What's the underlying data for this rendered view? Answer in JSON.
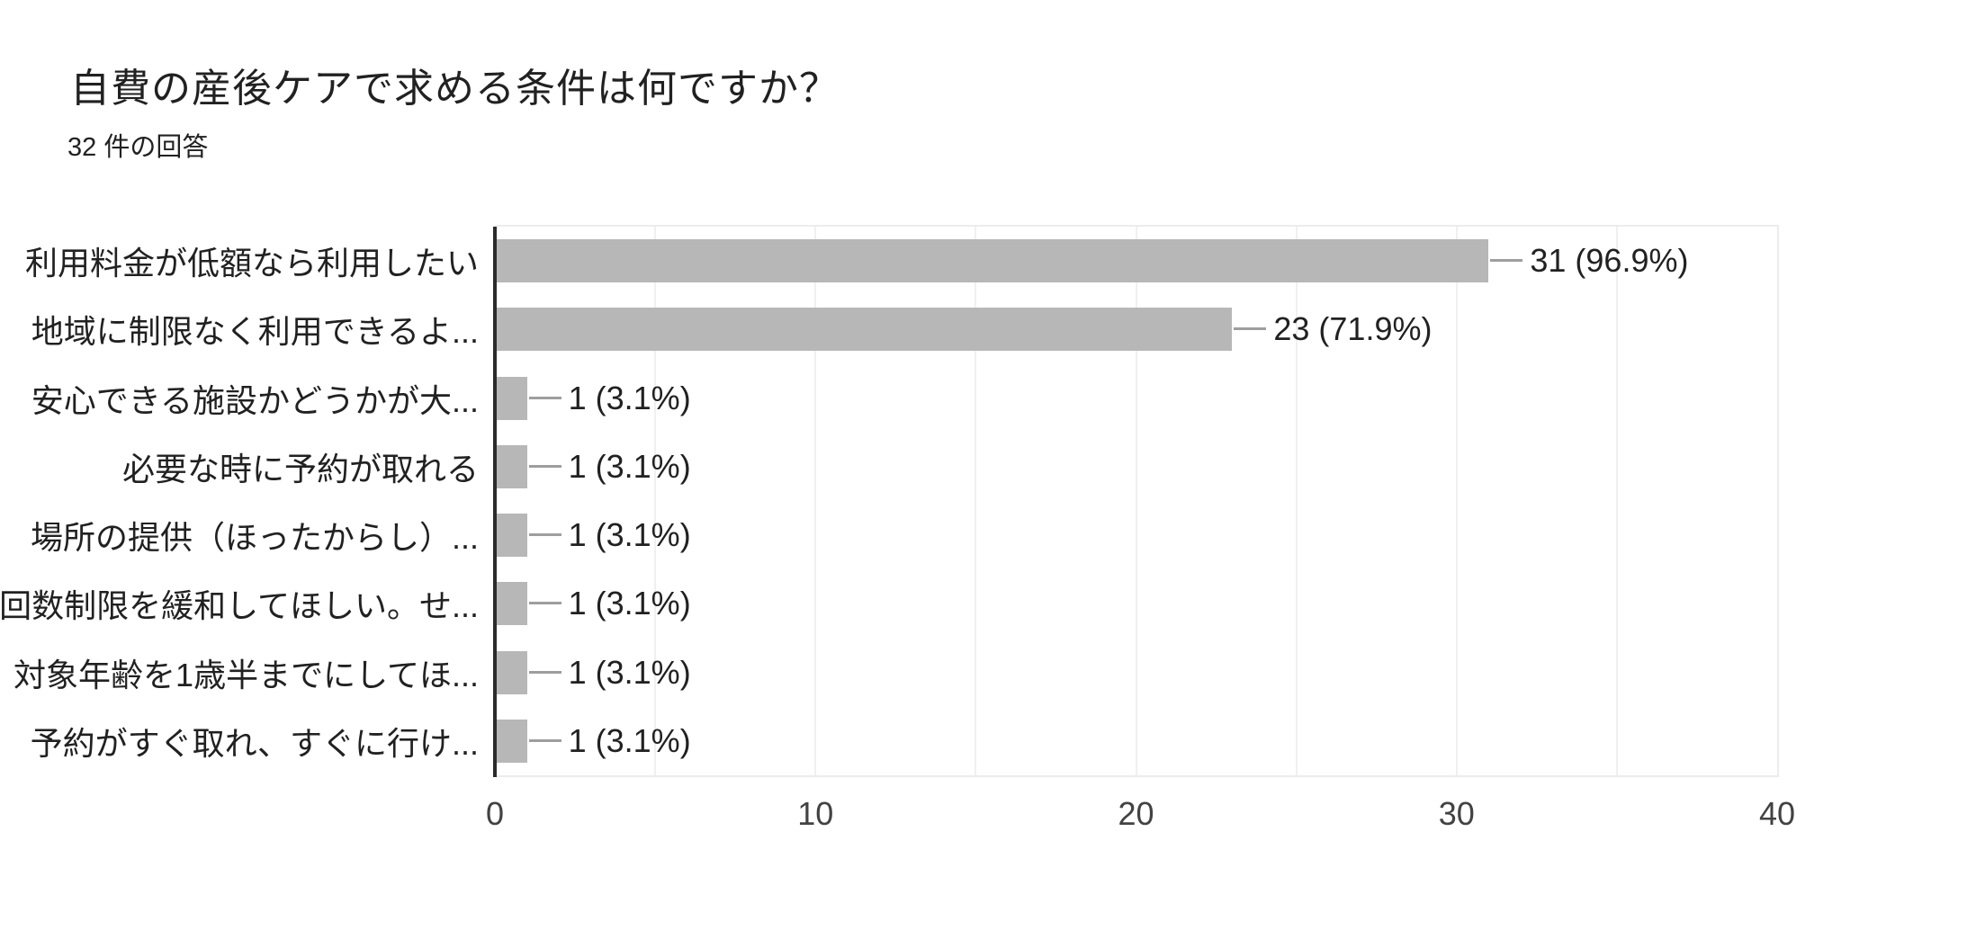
{
  "header": {
    "title": "自費の産後ケアで求める条件は何ですか？",
    "response_count": "32 件の回答"
  },
  "chart_data": {
    "type": "bar",
    "orientation": "horizontal",
    "title": "自費の産後ケアで求める条件は何ですか？",
    "subtitle": "32 件の回答",
    "total_responses": 32,
    "categories": [
      "利用料金が低額なら利用したい",
      "地域に制限なく利用できるよ...",
      "安心できる施設かどうかが大...",
      "必要な時に予約が取れる",
      "場所の提供（ほったからし）...",
      "回数制限を緩和してほしい。せ...",
      "対象年齢を1歳半までにしてほ...",
      "予約がすぐ取れ、すぐに行け..."
    ],
    "values": [
      31,
      23,
      1,
      1,
      1,
      1,
      1,
      1
    ],
    "percentages": [
      96.9,
      71.9,
      3.1,
      3.1,
      3.1,
      3.1,
      3.1,
      3.1
    ],
    "value_labels": [
      "31 (96.9%)",
      "23 (71.9%)",
      "1 (3.1%)",
      "1 (3.1%)",
      "1 (3.1%)",
      "1 (3.1%)",
      "1 (3.1%)",
      "1 (3.1%)"
    ],
    "x_ticks": [
      0,
      10,
      20,
      30,
      40
    ],
    "xlim": [
      0,
      40
    ],
    "grid": true,
    "grid_interval": 5,
    "legend_position": "none",
    "colors": {
      "bar": "#b7b7b7",
      "leader_line": "#9e9e9e",
      "gridline": "#f0f0f0",
      "frame": "#ececec",
      "axis_line": "#2b2b2b",
      "label_text": "#212121",
      "value_text": "#212121",
      "tick_text": "#424242",
      "background": "#ffffff"
    }
  }
}
